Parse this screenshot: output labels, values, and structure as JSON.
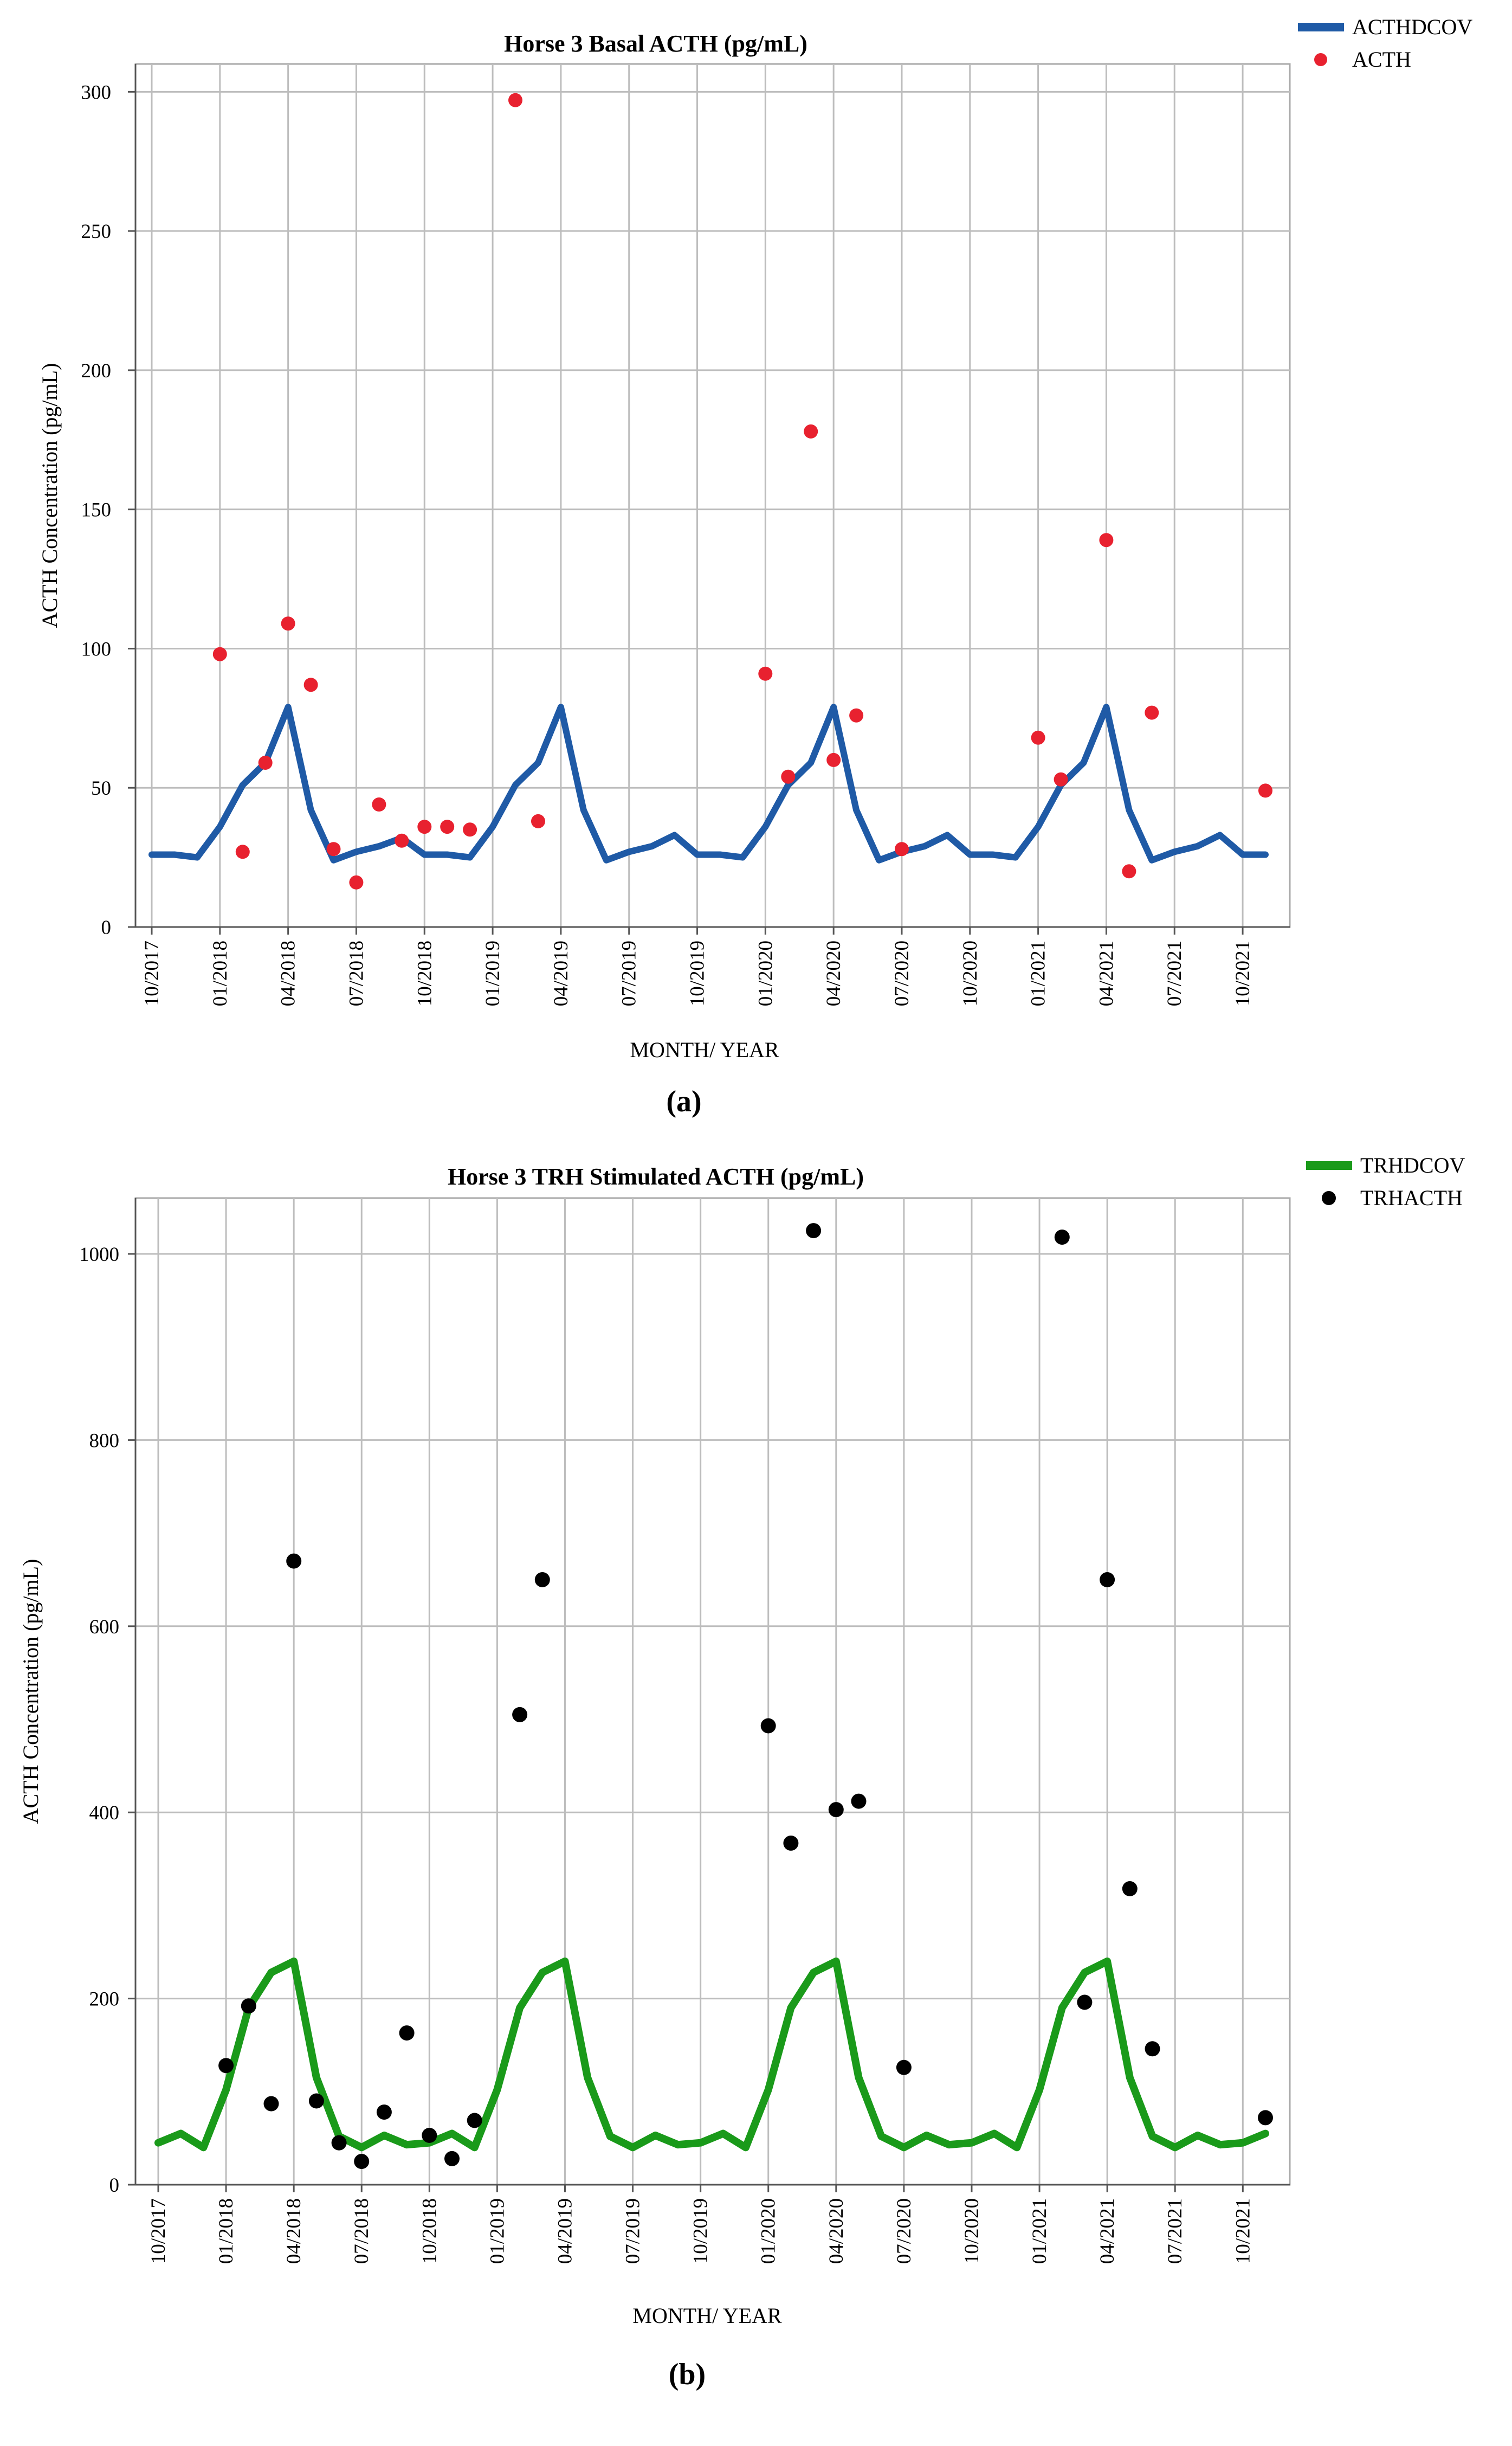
{
  "chart_data": [
    {
      "type": "line",
      "panel_label": "(a)",
      "title": "Horse 3 Basal ACTH (pg/mL)",
      "xlabel": "MONTH/ YEAR",
      "ylabel": "ACTH Concentration (pg/mL)",
      "ylim": [
        0,
        310
      ],
      "yticks": [
        0,
        50,
        100,
        150,
        200,
        250,
        300
      ],
      "x_start_month_index": 0,
      "x_end_month_index": 49,
      "xticks": [
        {
          "label": "10/2017",
          "month_index": 0
        },
        {
          "label": "01/2018",
          "month_index": 3
        },
        {
          "label": "04/2018",
          "month_index": 6
        },
        {
          "label": "07/2018",
          "month_index": 9
        },
        {
          "label": "10/2018",
          "month_index": 12
        },
        {
          "label": "01/2019",
          "month_index": 15
        },
        {
          "label": "04/2019",
          "month_index": 18
        },
        {
          "label": "07/2019",
          "month_index": 21
        },
        {
          "label": "10/2019",
          "month_index": 24
        },
        {
          "label": "01/2020",
          "month_index": 27
        },
        {
          "label": "04/2020",
          "month_index": 30
        },
        {
          "label": "07/2020",
          "month_index": 33
        },
        {
          "label": "10/2020",
          "month_index": 36
        },
        {
          "label": "01/2021",
          "month_index": 39
        },
        {
          "label": "04/2021",
          "month_index": 42
        },
        {
          "label": "07/2021",
          "month_index": 45
        },
        {
          "label": "10/2021",
          "month_index": 48
        }
      ],
      "legend_position": "top-right",
      "series": [
        {
          "name": "ACTHDCOV",
          "kind": "line",
          "color": "#1f5aa6",
          "x": [
            0,
            1,
            2,
            3,
            4,
            5,
            6,
            7,
            8,
            9,
            10,
            11,
            12,
            13,
            14,
            15,
            16,
            17,
            18,
            19,
            20,
            21,
            22,
            23,
            24,
            25,
            26,
            27,
            28,
            29,
            30,
            31,
            32,
            33,
            34,
            35,
            36,
            37,
            38,
            39,
            40,
            41,
            42,
            43,
            44,
            45,
            46,
            47,
            48,
            49
          ],
          "y": [
            26,
            26,
            25,
            36,
            51,
            59,
            79,
            42,
            24,
            27,
            29,
            32,
            26,
            26,
            25,
            36,
            51,
            59,
            79,
            42,
            24,
            27,
            29,
            33,
            26,
            26,
            25,
            36,
            51,
            59,
            79,
            42,
            24,
            27,
            29,
            33,
            26,
            26,
            25,
            36,
            51,
            59,
            79,
            42,
            24,
            27,
            29,
            33,
            26,
            26
          ]
        },
        {
          "name": "ACTH",
          "kind": "scatter",
          "color": "#e8212f",
          "x": [
            3,
            4,
            5,
            6,
            7,
            8,
            9,
            10,
            11,
            12,
            13,
            14,
            16,
            17,
            27,
            28,
            29,
            30,
            31,
            33,
            39,
            40,
            42,
            43,
            44,
            49
          ],
          "y": [
            98,
            27,
            59,
            109,
            87,
            28,
            16,
            44,
            31,
            36,
            36,
            35,
            297,
            38,
            91,
            54,
            178,
            60,
            76,
            28,
            68,
            53,
            139,
            20,
            77,
            49
          ]
        }
      ]
    },
    {
      "type": "line",
      "panel_label": "(b)",
      "title": "Horse 3 TRH Stimulated ACTH (pg/mL)",
      "xlabel": "MONTH/ YEAR",
      "ylabel": "ACTH Concentration (pg/mL)",
      "ylim": [
        0,
        1060
      ],
      "yticks": [
        0,
        200,
        400,
        600,
        800,
        1000
      ],
      "x_start_month_index": 0,
      "x_end_month_index": 49,
      "xticks": [
        {
          "label": "10/2017",
          "month_index": 0
        },
        {
          "label": "01/2018",
          "month_index": 3
        },
        {
          "label": "04/2018",
          "month_index": 6
        },
        {
          "label": "07/2018",
          "month_index": 9
        },
        {
          "label": "10/2018",
          "month_index": 12
        },
        {
          "label": "01/2019",
          "month_index": 15
        },
        {
          "label": "04/2019",
          "month_index": 18
        },
        {
          "label": "07/2019",
          "month_index": 21
        },
        {
          "label": "10/2019",
          "month_index": 24
        },
        {
          "label": "01/2020",
          "month_index": 27
        },
        {
          "label": "04/2020",
          "month_index": 30
        },
        {
          "label": "07/2020",
          "month_index": 33
        },
        {
          "label": "10/2020",
          "month_index": 36
        },
        {
          "label": "01/2021",
          "month_index": 39
        },
        {
          "label": "04/2021",
          "month_index": 42
        },
        {
          "label": "07/2021",
          "month_index": 45
        },
        {
          "label": "10/2021",
          "month_index": 48
        }
      ],
      "legend_position": "top-right",
      "series": [
        {
          "name": "TRHDCOV",
          "kind": "line",
          "color": "#1a9a1a",
          "x": [
            0,
            1,
            2,
            3,
            4,
            5,
            6,
            7,
            8,
            9,
            10,
            11,
            12,
            13,
            14,
            15,
            16,
            17,
            18,
            19,
            20,
            21,
            22,
            23,
            24,
            25,
            26,
            27,
            28,
            29,
            30,
            31,
            32,
            33,
            34,
            35,
            36,
            37,
            38,
            39,
            40,
            41,
            42,
            43,
            44,
            45,
            46,
            47,
            48,
            49
          ],
          "y": [
            45,
            55,
            40,
            102,
            190,
            228,
            240,
            115,
            52,
            40,
            53,
            43,
            45,
            55,
            40,
            102,
            190,
            228,
            240,
            115,
            52,
            40,
            53,
            43,
            45,
            55,
            40,
            102,
            190,
            228,
            240,
            115,
            52,
            40,
            53,
            43,
            45,
            55,
            40,
            102,
            190,
            228,
            240,
            115,
            52,
            40,
            53,
            43,
            45,
            55
          ]
        },
        {
          "name": "TRHACTH",
          "kind": "scatter",
          "color": "#000000",
          "x": [
            3,
            4,
            5,
            6,
            7,
            8,
            9,
            10,
            11,
            12,
            13,
            14,
            16,
            17,
            27,
            28,
            29,
            30,
            31,
            33,
            40,
            41,
            42,
            43,
            44,
            49
          ],
          "y": [
            128,
            192,
            87,
            670,
            90,
            45,
            25,
            78,
            163,
            53,
            28,
            69,
            505,
            650,
            493,
            367,
            1025,
            403,
            412,
            126,
            1018,
            196,
            650,
            318,
            146,
            72
          ]
        }
      ]
    }
  ]
}
